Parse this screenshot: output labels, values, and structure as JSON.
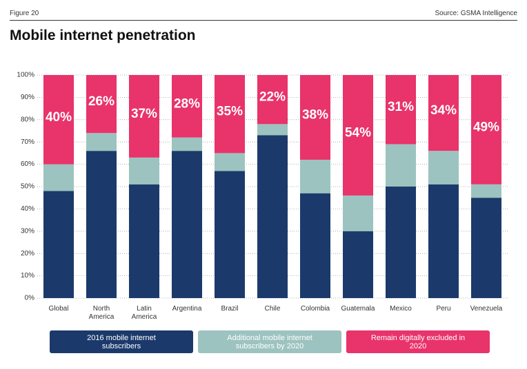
{
  "header": {
    "figure": "Figure 20",
    "source": "Source: GSMA Intelligence"
  },
  "chart_data": {
    "type": "stacked-bar",
    "title": "Mobile internet penetration",
    "categories": [
      "Global",
      "North America",
      "Latin America",
      "Argentina",
      "Brazil",
      "Chile",
      "Colombia",
      "Guatemala",
      "Mexico",
      "Peru",
      "Venezuela"
    ],
    "series": [
      {
        "name": "2016 mobile internet subscribers",
        "color": "#1b3a6b",
        "values": [
          48,
          66,
          51,
          66,
          57,
          73,
          47,
          30,
          50,
          51,
          45
        ]
      },
      {
        "name": "Additional mobile internet subscribers by 2020",
        "color": "#9cc3bf",
        "values": [
          12,
          8,
          12,
          6,
          8,
          5,
          15,
          16,
          19,
          15,
          6
        ]
      },
      {
        "name": "Remain digitally excluded in 2020",
        "color": "#e8336b",
        "values": [
          40,
          26,
          37,
          28,
          35,
          22,
          38,
          54,
          31,
          34,
          49
        ],
        "value_labels": [
          "40%",
          "26%",
          "37%",
          "28%",
          "35%",
          "22%",
          "38%",
          "54%",
          "31%",
          "34%",
          "49%"
        ]
      }
    ],
    "ylim": [
      0,
      100
    ],
    "yticks": [
      {
        "value": 0,
        "label": "0%"
      },
      {
        "value": 10,
        "label": "10%"
      },
      {
        "value": 20,
        "label": "20%"
      },
      {
        "value": 30,
        "label": "30%"
      },
      {
        "value": 40,
        "label": "40%"
      },
      {
        "value": 50,
        "label": "50%"
      },
      {
        "value": 60,
        "label": "60%"
      },
      {
        "value": 70,
        "label": "70%"
      },
      {
        "value": 80,
        "label": "80%"
      },
      {
        "value": 90,
        "label": "90%"
      },
      {
        "value": 100,
        "label": "100%"
      }
    ],
    "grid": true
  }
}
